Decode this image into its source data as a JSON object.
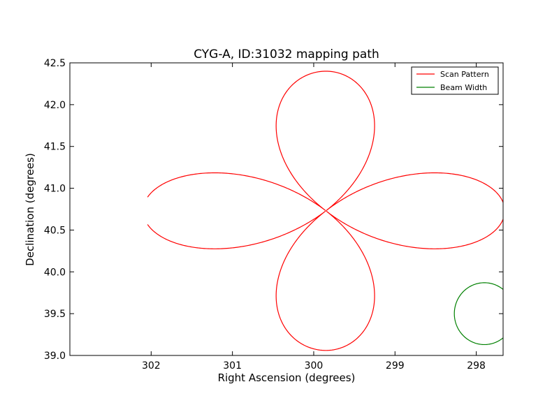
{
  "chart_data": {
    "type": "line",
    "title": "CYG-A, ID:31032 mapping path",
    "xlabel": "Right Ascension (degrees)",
    "ylabel": "Declination (degrees)",
    "xlim": [
      303.0,
      297.67
    ],
    "ylim": [
      39.0,
      42.5
    ],
    "x_inverted": true,
    "xticks": [
      302,
      301,
      300,
      299,
      298
    ],
    "yticks": [
      39.0,
      39.5,
      40.0,
      40.5,
      41.0,
      41.5,
      42.0,
      42.5
    ],
    "grid": false,
    "legend": {
      "placement": "top-right",
      "entries": [
        "Scan Pattern",
        "Beam Width"
      ]
    },
    "series": [
      {
        "name": "Scan Pattern",
        "color": "#ff0000",
        "path": "rose",
        "center": {
          "ra": 299.85,
          "dec": 40.73
        },
        "lobe_extent": {
          "ra_west": 2.25,
          "ra_east": 2.2,
          "dec_north": 1.67,
          "dec_south": 1.67
        }
      },
      {
        "name": "Beam Width",
        "color": "#008000",
        "path": "circle",
        "center": {
          "ra": 297.9,
          "dec": 39.5
        },
        "radius_deg": 0.37
      }
    ]
  }
}
